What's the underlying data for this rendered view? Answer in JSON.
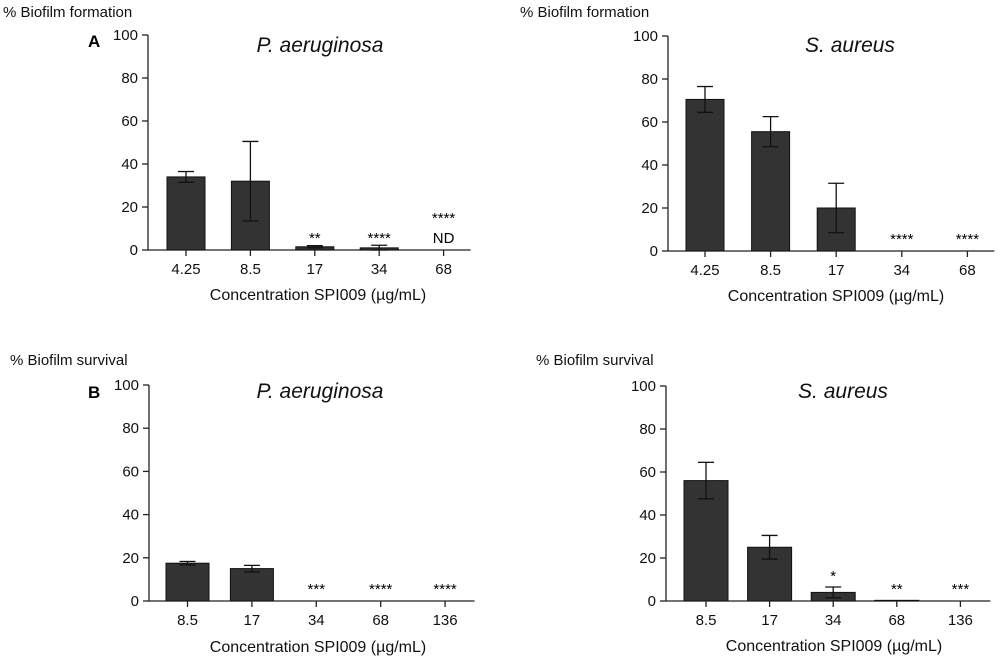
{
  "chart_data": [
    {
      "type": "bar",
      "panel": "A",
      "title": "P. aeruginosa",
      "ylabel": "% Biofilm formation",
      "xlabel": "Concentration SPI009 (µg/mL)",
      "ylim": [
        0,
        100
      ],
      "yticks": [
        0,
        20,
        40,
        60,
        80,
        100
      ],
      "categories": [
        "4.25",
        "8.5",
        "17",
        "34",
        "68"
      ],
      "values": [
        34,
        32,
        1.5,
        1,
        0
      ],
      "errors": [
        2.5,
        18.5,
        0.5,
        1.2,
        0
      ],
      "annotations": [
        "",
        "",
        "**",
        "****",
        "****\nND"
      ]
    },
    {
      "type": "bar",
      "panel": "",
      "title": "S. aureus",
      "ylabel": "% Biofilm formation",
      "xlabel": "Concentration SPI009 (µg/mL)",
      "ylim": [
        0,
        100
      ],
      "yticks": [
        0,
        20,
        40,
        60,
        80,
        100
      ],
      "categories": [
        "4.25",
        "8.5",
        "17",
        "34",
        "68"
      ],
      "values": [
        70.5,
        55.5,
        20,
        0,
        0
      ],
      "errors": [
        6,
        7,
        11.5,
        0,
        0
      ],
      "annotations": [
        "",
        "",
        "",
        "****",
        "****"
      ]
    },
    {
      "type": "bar",
      "panel": "B",
      "title": "P. aeruginosa",
      "ylabel": "% Biofilm survival",
      "xlabel": "Concentration SPI009 (µg/mL)",
      "ylim": [
        0,
        100
      ],
      "yticks": [
        0,
        20,
        40,
        60,
        80,
        100
      ],
      "categories": [
        "8.5",
        "17",
        "34",
        "68",
        "136"
      ],
      "values": [
        17.5,
        15,
        0,
        0,
        0
      ],
      "errors": [
        0.8,
        1.5,
        0,
        0,
        0
      ],
      "annotations": [
        "",
        "",
        "***",
        "****",
        "****"
      ]
    },
    {
      "type": "bar",
      "panel": "",
      "title": "S. aureus",
      "ylabel": "% Biofilm survival",
      "xlabel": "Concentration SPI009 (µg/mL)",
      "ylim": [
        0,
        100
      ],
      "yticks": [
        0,
        20,
        40,
        60,
        80,
        100
      ],
      "categories": [
        "8.5",
        "17",
        "34",
        "68",
        "136"
      ],
      "values": [
        56,
        25,
        4,
        0.3,
        0
      ],
      "errors": [
        8.5,
        5.5,
        2.5,
        0,
        0
      ],
      "annotations": [
        "",
        "",
        "*",
        "**",
        "***"
      ]
    }
  ]
}
